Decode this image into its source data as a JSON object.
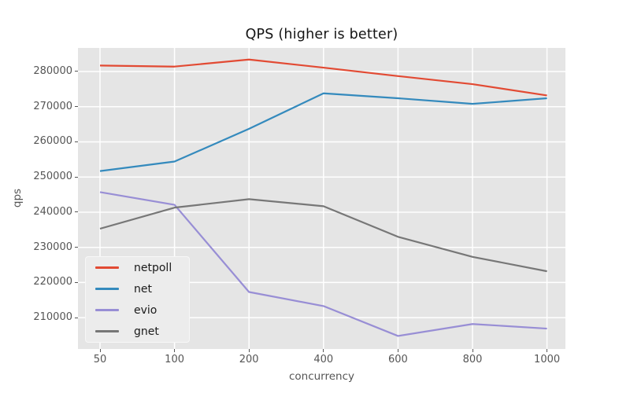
{
  "chart_data": {
    "type": "line",
    "title": "QPS (higher is better)",
    "xlabel": "concurrency",
    "ylabel": "qps",
    "categories": [
      50,
      100,
      200,
      400,
      600,
      800,
      1000
    ],
    "series": [
      {
        "name": "netpoll",
        "color": "#E24A33",
        "values": [
          281700,
          281400,
          283400,
          281100,
          278700,
          276400,
          273200
        ]
      },
      {
        "name": "net",
        "color": "#348ABD",
        "values": [
          251700,
          254400,
          263700,
          273800,
          272400,
          270800,
          272400
        ]
      },
      {
        "name": "evio",
        "color": "#988ED5",
        "values": [
          245700,
          242100,
          217300,
          213300,
          204800,
          208200,
          206900
        ]
      },
      {
        "name": "gnet",
        "color": "#777777",
        "values": [
          235300,
          241300,
          243700,
          241700,
          233000,
          227300,
          223200
        ]
      }
    ],
    "y_ticks": [
      210000,
      220000,
      230000,
      240000,
      250000,
      260000,
      270000,
      280000
    ],
    "ylim": [
      201100,
      286700
    ],
    "grid": true,
    "legend_position": "lower left",
    "style": {
      "plot_bg": "#e5e5e5",
      "figure_bg": "#ffffff",
      "grid_color": "#ffffff",
      "tick_text_color": "#555555",
      "title_color": "#141414",
      "legend_bg": "#ececec",
      "legend_border": "#f7f7f7",
      "legend_text_color": "#1a1a1a"
    }
  }
}
